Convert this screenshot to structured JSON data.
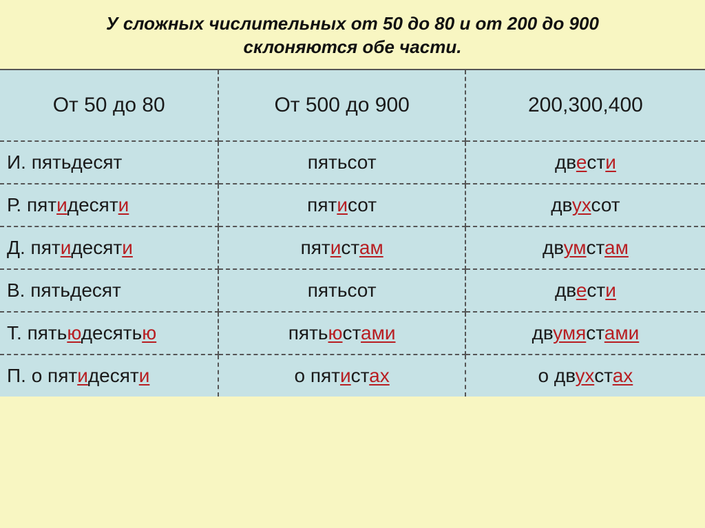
{
  "title_line1": "У сложных числительных от 50 до 80 и от 200 до 900",
  "title_line2": "склоняются обе части.",
  "headers": {
    "h1": "От 50 до 80",
    "h2": "От 500 до 900",
    "h3": "200,300,400"
  },
  "rows": {
    "r1": {
      "case": "И.",
      "a_pre": "пятьдесят",
      "b_pre": "пятьсот",
      "c_pre": "дв",
      "c_m1": "е",
      "c_mid": "ст",
      "c_m2": "и"
    },
    "r2": {
      "case": "Р.",
      "a_pre": "пят",
      "a_m1": "и",
      "a_mid": "десят",
      "a_m2": "и",
      "b_pre": "пят",
      "b_m1": "и",
      "b_mid": "сот",
      "c_pre": "дв",
      "c_m1": "ух",
      "c_mid": "сот"
    },
    "r3": {
      "case": "Д.",
      "a_pre": "пят",
      "a_m1": "и",
      "a_mid": "десят",
      "a_m2": "и",
      "b_pre": "пят",
      "b_m1": "и",
      "b_mid": "ст",
      "b_m2": "ам",
      "c_pre": "дв",
      "c_m1": "ум",
      "c_mid": "ст",
      "c_m2": "ам"
    },
    "r4": {
      "case": "В.",
      "a_pre": "пятьдесят",
      "b_pre": "пятьсот",
      "c_pre": "дв",
      "c_m1": "е",
      "c_mid": "ст",
      "c_m2": "и"
    },
    "r5": {
      "case": "Т.",
      "a_pre": "пять",
      "a_m1": "ю",
      "a_mid": "десять",
      "a_m2": "ю",
      "b_pre": "пять",
      "b_m1": "ю",
      "b_mid": "ст",
      "b_m2": "ами",
      "c_pre": "дв",
      "c_m1": "умя",
      "c_mid": "ст",
      "c_m2": "ами"
    },
    "r6": {
      "case": "П.",
      "a_prefix": "о ",
      "a_pre": "пят",
      "a_m1": "и",
      "a_mid": "десят",
      "a_m2": "и",
      "b_prefix": "о ",
      "b_pre": "пят",
      "b_m1": "и",
      "b_mid": "ст",
      "b_m2": "ах",
      "c_prefix": "о ",
      "c_pre": "дв",
      "c_m1": "ух",
      "c_mid": "ст",
      "c_m2": "ах"
    }
  },
  "styling": {
    "background": "#f8f6c2",
    "cell_bg": "#c6e2e5",
    "highlight_color": "#b81e22",
    "text_color": "#1a1a1a",
    "border_style": "dashed",
    "title_fontsize": 26,
    "header_fontsize": 30,
    "cell_fontsize": 28
  }
}
